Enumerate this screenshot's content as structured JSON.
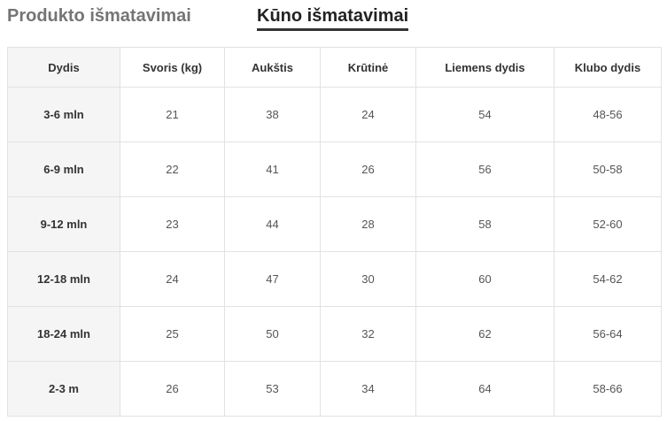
{
  "tabs": {
    "product_label": "Produkto išmatavimai",
    "body_label": "Kūno išmatavimai"
  },
  "table": {
    "headers": [
      "Dydis",
      "Svoris (kg)",
      "Aukštis",
      "Krūtinė",
      "Liemens dydis",
      "Klubo dydis"
    ],
    "rows": [
      [
        "3-6 mln",
        "21",
        "38",
        "24",
        "54",
        "48-56"
      ],
      [
        "6-9 mln",
        "22",
        "41",
        "26",
        "56",
        "50-58"
      ],
      [
        "9-12 mln",
        "23",
        "44",
        "28",
        "58",
        "52-60"
      ],
      [
        "12-18 mln",
        "24",
        "47",
        "30",
        "60",
        "54-62"
      ],
      [
        "18-24 mln",
        "25",
        "50",
        "32",
        "62",
        "56-64"
      ],
      [
        "2-3 m",
        "26",
        "53",
        "34",
        "64",
        "58-66"
      ]
    ]
  }
}
